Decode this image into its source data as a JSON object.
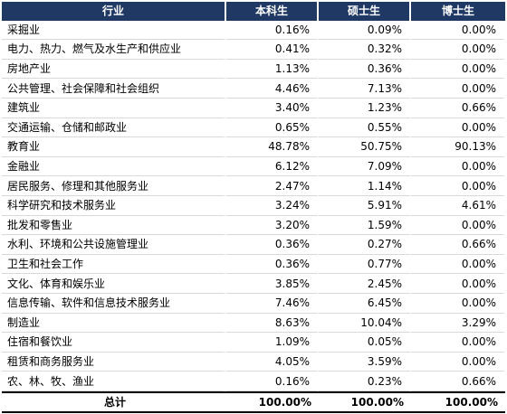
{
  "headers": [
    "行业",
    "本科生",
    "硕士生",
    "博士生"
  ],
  "rows": [
    {
      "industry": "采掘业",
      "bachelor": "0.16%",
      "master": "0.09%",
      "doctor": "0.00%"
    },
    {
      "industry": "电力、热力、燃气及水生产和供应业",
      "bachelor": "0.41%",
      "master": "0.32%",
      "doctor": "0.00%"
    },
    {
      "industry": "房地产业",
      "bachelor": "1.13%",
      "master": "0.36%",
      "doctor": "0.00%"
    },
    {
      "industry": "公共管理、社会保障和社会组织",
      "bachelor": "4.46%",
      "master": "7.13%",
      "doctor": "0.00%"
    },
    {
      "industry": "建筑业",
      "bachelor": "3.40%",
      "master": "1.23%",
      "doctor": "0.66%"
    },
    {
      "industry": "交通运输、仓储和邮政业",
      "bachelor": "0.65%",
      "master": "0.55%",
      "doctor": "0.00%"
    },
    {
      "industry": "教育业",
      "bachelor": "48.78%",
      "master": "50.75%",
      "doctor": "90.13%"
    },
    {
      "industry": "金融业",
      "bachelor": "6.12%",
      "master": "7.09%",
      "doctor": "0.00%"
    },
    {
      "industry": "居民服务、修理和其他服务业",
      "bachelor": "2.47%",
      "master": "1.14%",
      "doctor": "0.00%"
    },
    {
      "industry": "科学研究和技术服务业",
      "bachelor": "3.24%",
      "master": "5.91%",
      "doctor": "4.61%"
    },
    {
      "industry": "批发和零售业",
      "bachelor": "3.20%",
      "master": "1.59%",
      "doctor": "0.00%"
    },
    {
      "industry": "水利、环境和公共设施管理业",
      "bachelor": "0.36%",
      "master": "0.27%",
      "doctor": "0.66%"
    },
    {
      "industry": "卫生和社会工作",
      "bachelor": "0.36%",
      "master": "0.77%",
      "doctor": "0.00%"
    },
    {
      "industry": "文化、体育和娱乐业",
      "bachelor": "3.85%",
      "master": "2.45%",
      "doctor": "0.00%"
    },
    {
      "industry": "信息传输、软件和信息技术服务业",
      "bachelor": "7.46%",
      "master": "6.45%",
      "doctor": "0.00%"
    },
    {
      "industry": "制造业",
      "bachelor": "8.63%",
      "master": "10.04%",
      "doctor": "3.29%"
    },
    {
      "industry": "住宿和餐饮业",
      "bachelor": "1.09%",
      "master": "0.05%",
      "doctor": "0.00%"
    },
    {
      "industry": "租赁和商务服务业",
      "bachelor": "4.05%",
      "master": "3.59%",
      "doctor": "0.00%"
    },
    {
      "industry": "农、林、牧、渔业",
      "bachelor": "0.16%",
      "master": "0.23%",
      "doctor": "0.66%"
    }
  ],
  "total": {
    "label": "总计",
    "bachelor": "100.00%",
    "master": "100.00%",
    "doctor": "100.00%"
  },
  "colors": {
    "header_bg": "#1f3864",
    "header_text": "#ffffff"
  }
}
